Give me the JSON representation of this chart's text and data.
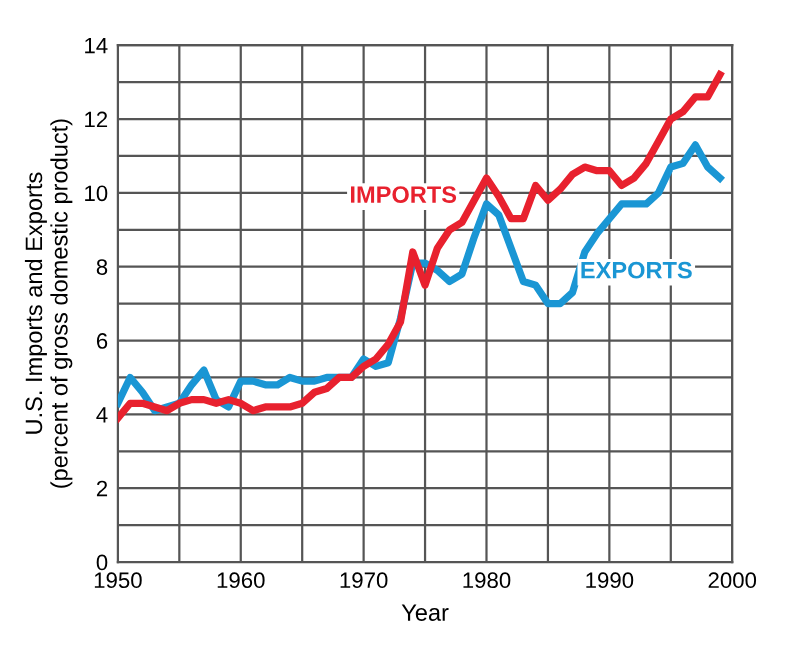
{
  "chart_data": {
    "type": "line",
    "xlabel": "Year",
    "ylabel": "U.S. Imports and Exports\n(percent of gross domestic product)",
    "x": [
      1950,
      1951,
      1952,
      1953,
      1954,
      1955,
      1956,
      1957,
      1958,
      1959,
      1960,
      1961,
      1962,
      1963,
      1964,
      1965,
      1966,
      1967,
      1968,
      1969,
      1970,
      1971,
      1972,
      1973,
      1974,
      1975,
      1976,
      1977,
      1978,
      1979,
      1980,
      1981,
      1982,
      1983,
      1984,
      1985,
      1986,
      1987,
      1988,
      1989,
      1990,
      1991,
      1992,
      1993,
      1994,
      1995,
      1996,
      1997,
      1998,
      1999
    ],
    "series": [
      {
        "name": "IMPORTS",
        "color": "#e8212e",
        "values": [
          3.9,
          4.3,
          4.3,
          4.2,
          4.1,
          4.3,
          4.4,
          4.4,
          4.3,
          4.4,
          4.3,
          4.1,
          4.2,
          4.2,
          4.2,
          4.3,
          4.6,
          4.7,
          5.0,
          5.0,
          5.3,
          5.5,
          5.9,
          6.5,
          8.4,
          7.5,
          8.5,
          9.0,
          9.2,
          9.8,
          10.4,
          9.9,
          9.3,
          9.3,
          10.2,
          9.8,
          10.1,
          10.5,
          10.7,
          10.6,
          10.6,
          10.2,
          10.4,
          10.8,
          11.4,
          12.0,
          12.2,
          12.6,
          12.6,
          13.2
        ]
      },
      {
        "name": "EXPORTS",
        "color": "#1a96d4",
        "values": [
          4.3,
          5.0,
          4.6,
          4.1,
          4.2,
          4.3,
          4.8,
          5.2,
          4.4,
          4.2,
          4.9,
          4.9,
          4.8,
          4.8,
          5.0,
          4.9,
          4.9,
          5.0,
          5.0,
          5.0,
          5.5,
          5.3,
          5.4,
          6.6,
          8.1,
          8.1,
          7.9,
          7.6,
          7.8,
          8.8,
          9.7,
          9.4,
          8.5,
          7.6,
          7.5,
          7.0,
          7.0,
          7.3,
          8.4,
          8.9,
          9.3,
          9.7,
          9.7,
          9.7,
          10.0,
          10.7,
          10.8,
          11.3,
          10.7,
          10.4
        ]
      }
    ],
    "xlim": [
      1950,
      2000
    ],
    "xticks": [
      1950,
      {
        "value": 1955,
        "label": null
      },
      1960,
      {
        "value": 1965,
        "label": null
      },
      1970,
      {
        "value": 1975,
        "label": null
      },
      1980,
      {
        "value": 1985,
        "label": null
      },
      1990,
      {
        "value": 1995,
        "label": null
      },
      2000
    ],
    "ylim": [
      0,
      14
    ],
    "yticks": [
      0,
      {
        "value": 1,
        "label": null
      },
      2,
      {
        "value": 3,
        "label": null
      },
      4,
      {
        "value": 5,
        "label": null
      },
      6,
      {
        "value": 7,
        "label": null
      },
      8,
      {
        "value": 9,
        "label": null
      },
      10,
      {
        "value": 11,
        "label": null
      },
      12,
      {
        "value": 13,
        "label": null
      },
      14
    ],
    "grid": true,
    "legend": false,
    "marker": "none",
    "line_style": "solid"
  }
}
